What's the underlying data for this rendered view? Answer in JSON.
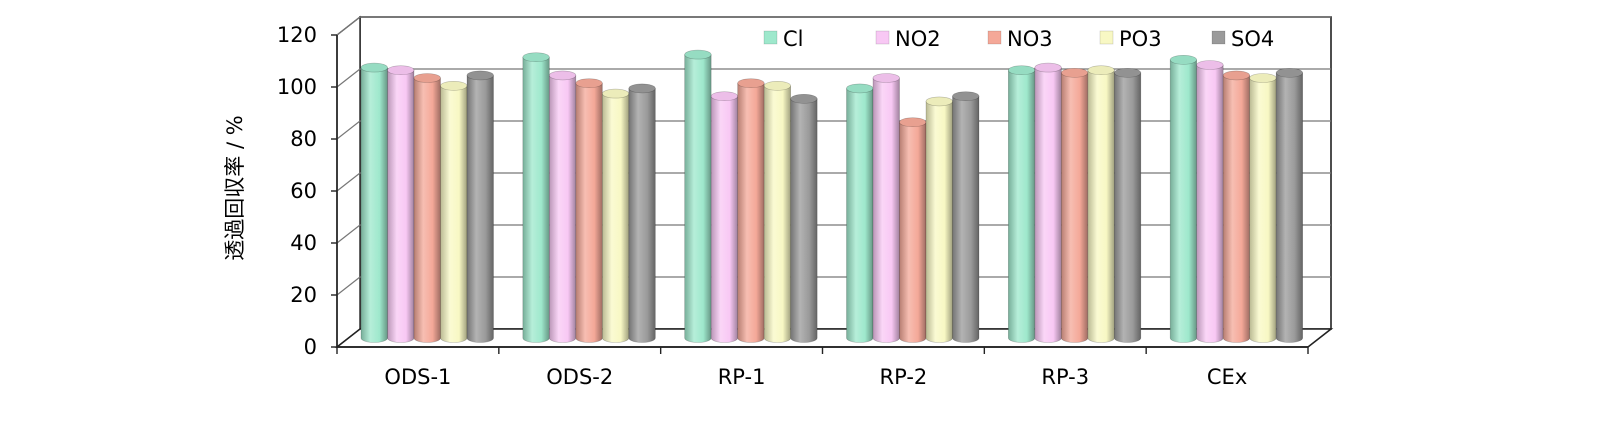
{
  "chart_data": {
    "type": "bar",
    "title": "",
    "xlabel": "",
    "ylabel": "透過回収率 / %",
    "ylim": [
      0,
      120
    ],
    "yticks": [
      0,
      20,
      40,
      60,
      80,
      100,
      120
    ],
    "grid": true,
    "legend_position": "top-right",
    "categories": [
      "ODS-1",
      "ODS-2",
      "RP-1",
      "RP-2",
      "RP-3",
      "CEx"
    ],
    "series": [
      {
        "name": "Cl",
        "color": "#9EE8CC",
        "values": [
          104,
          108,
          109,
          96,
          103,
          107
        ]
      },
      {
        "name": "NO2",
        "color": "#F8C8F4",
        "values": [
          103,
          101,
          93,
          100,
          104,
          105
        ]
      },
      {
        "name": "NO3",
        "color": "#F4A898",
        "values": [
          100,
          98,
          98,
          83,
          102,
          101
        ]
      },
      {
        "name": "PO3",
        "color": "#F8F8C4",
        "values": [
          97,
          94,
          97,
          91,
          103,
          100
        ]
      },
      {
        "name": "SO4",
        "color": "#9A9A9A",
        "values": [
          101,
          96,
          92,
          93,
          102,
          102
        ]
      }
    ]
  }
}
